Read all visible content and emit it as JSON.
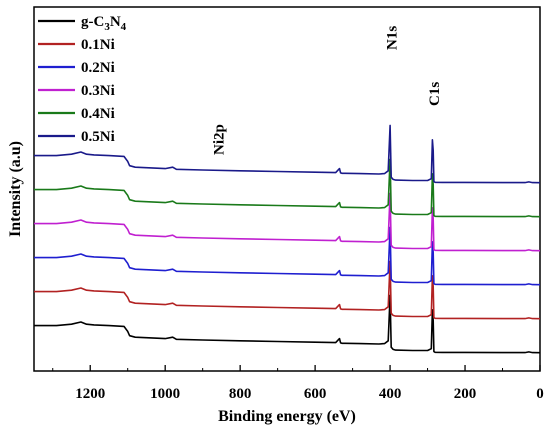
{
  "chart_data": {
    "type": "line",
    "xlabel": "Binding energy (eV)",
    "ylabel": "Intensity (a.u)",
    "xlim": [
      1350,
      0
    ],
    "x_reversed": true,
    "xticks": [
      1200,
      1000,
      800,
      600,
      400,
      200,
      0
    ],
    "xtick_labels": [
      "1200",
      "1000",
      "800",
      "600",
      "400",
      "200",
      "0"
    ],
    "y_ticks_shown": false,
    "legend_placement": "top-left",
    "legend_base": "g-C",
    "legend_sub_a": "3",
    "legend_mid": "N",
    "legend_sub_b": "4",
    "annotations": [
      {
        "text": "Ni2p",
        "x": 860
      },
      {
        "text": "N1s",
        "x": 399
      },
      {
        "text": "C1s",
        "x": 285
      }
    ],
    "series": [
      {
        "name": "g-C3N4",
        "color": "#000000",
        "offset": 0
      },
      {
        "name": "0.1Ni",
        "color": "#b22222",
        "offset": 1
      },
      {
        "name": "0.2Ni",
        "color": "#1f1fd0",
        "offset": 2
      },
      {
        "name": "0.3Ni",
        "color": "#c020d0",
        "offset": 3
      },
      {
        "name": "0.4Ni",
        "color": "#1a7a1a",
        "offset": 4
      },
      {
        "name": "0.5Ni",
        "color": "#1a1a8a",
        "offset": 5
      }
    ],
    "profile_x": [
      1350,
      1290,
      1250,
      1225,
      1210,
      1190,
      1150,
      1110,
      1100,
      1095,
      1080,
      1000,
      980,
      970,
      900,
      800,
      700,
      600,
      545,
      535,
      532,
      528,
      520,
      480,
      430,
      415,
      405,
      400,
      399,
      397,
      392,
      385,
      340,
      300,
      290,
      287,
      285,
      283,
      280,
      260,
      200,
      100,
      40,
      30,
      20,
      0
    ],
    "profile_y": [
      38,
      38,
      40,
      43,
      40,
      39,
      38,
      37,
      30,
      24,
      22,
      20,
      22,
      19,
      18,
      17,
      16,
      15,
      14.5,
      20,
      14,
      13.5,
      13.5,
      13,
      12.5,
      13,
      17,
      80,
      60,
      8,
      5,
      4,
      3.5,
      3.5,
      6,
      60,
      45,
      2,
      1,
      0.8,
      0.8,
      0.6,
      0.6,
      1.5,
      0.5,
      0.4
    ]
  }
}
